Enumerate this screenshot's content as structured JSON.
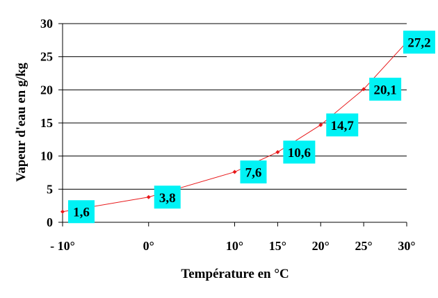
{
  "chart_data": {
    "type": "line",
    "title": "",
    "xlabel": "Température en °C",
    "ylabel": "Vapeur d'eau en g/kg",
    "x": [
      -10,
      0,
      10,
      15,
      20,
      25,
      30
    ],
    "x_tick_labels": [
      "- 10°",
      "0°",
      "10°",
      "15°",
      "20°",
      "25°",
      "30°"
    ],
    "xlim": [
      -10,
      30
    ],
    "ylim": [
      0,
      30
    ],
    "y_ticks": [
      0,
      5,
      10,
      15,
      20,
      25,
      30
    ],
    "grid": "horizontal",
    "legend": "none",
    "series": [
      {
        "x": [
          -10,
          0,
          10,
          15,
          20,
          25,
          30
        ],
        "values": [
          1.6,
          3.8,
          7.6,
          10.6,
          14.7,
          20.1,
          27.2
        ],
        "labels": [
          "1,6",
          "3,8",
          "7,6",
          "10,6",
          "14,7",
          "20,1",
          "27,2"
        ]
      }
    ],
    "colors": {
      "line": "#e8191b",
      "label_box": "#00f2f5",
      "gridline": "#000000"
    }
  }
}
